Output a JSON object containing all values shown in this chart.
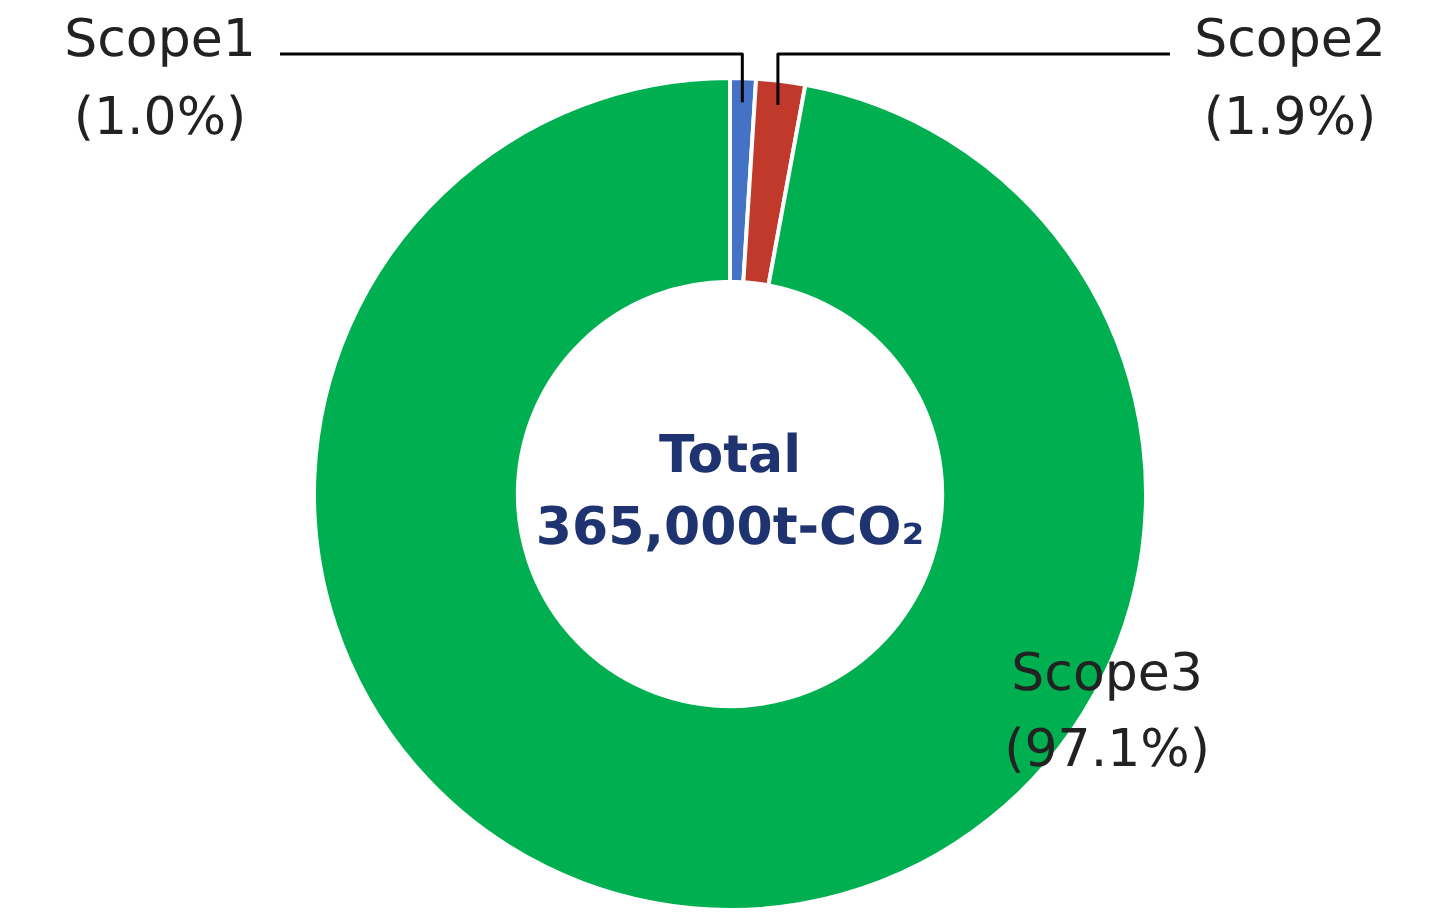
{
  "chart_data": {
    "type": "donut",
    "categories": [
      "Scope1",
      "Scope2",
      "Scope3"
    ],
    "values": [
      1.0,
      1.9,
      97.1
    ],
    "colors": [
      "#4472c4",
      "#c0392b",
      "#00b050"
    ],
    "value_labels": [
      "(1.0%)",
      "(1.9%)",
      "(97.1%)"
    ],
    "annotations": [
      "Total",
      "365,000t-CO₂"
    ],
    "legend": false
  }
}
